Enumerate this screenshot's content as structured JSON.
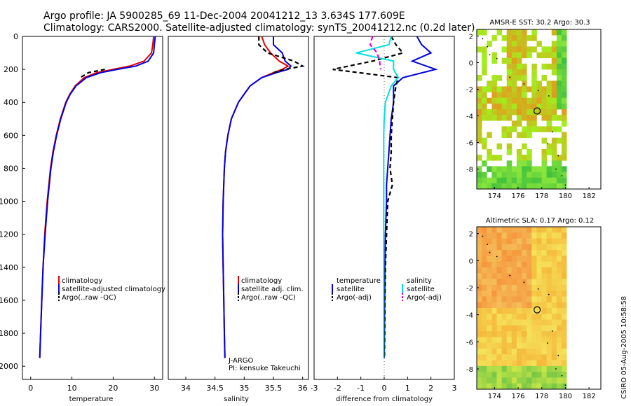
{
  "header": {
    "line1": "Argo profile: JA 5900285_69 11-Dec-2004 20041212_13 3.634S 177.609E",
    "line2": "Climatology: CARS2000. Satellite-adjusted climatology: synTS_20041212.nc (0.2d later)"
  },
  "colors": {
    "climatology": "#e00000",
    "satellite": "#0000e0",
    "argo": "#000000",
    "cyan": "#00e0e0",
    "magenta": "#e000e0"
  },
  "depth_ticks": [
    "0",
    "200",
    "400",
    "600",
    "800",
    "1000",
    "1200",
    "1400",
    "1600",
    "1800",
    "2000"
  ],
  "credit": "CSIRO 05-Aug-2005 10:58:58",
  "chart_data": [
    {
      "type": "line",
      "name": "temperature-profile",
      "xlabel": "temperature",
      "xlim": [
        -2,
        32
      ],
      "ylim": [
        2080,
        0
      ],
      "xticks": [
        "0",
        "10",
        "20",
        "30"
      ],
      "legend": [
        "climatology",
        "satellite-adjusted climatology",
        "Argo(..raw -QC)"
      ],
      "depth": [
        0,
        50,
        100,
        150,
        180,
        200,
        220,
        250,
        300,
        350,
        400,
        500,
        600,
        700,
        800,
        1000,
        1200,
        1400,
        1600,
        1800,
        1950
      ],
      "series": [
        {
          "name": "climatology",
          "color": "#e00000",
          "values": [
            29.8,
            29.6,
            29.3,
            27.5,
            24,
            20,
            16,
            13,
            10.8,
            9.5,
            8.5,
            7.2,
            6.2,
            5.4,
            4.8,
            4.0,
            3.4,
            3.0,
            2.7,
            2.4,
            2.2
          ]
        },
        {
          "name": "satellite-adjusted climatology",
          "color": "#0000e0",
          "values": [
            30.2,
            30.0,
            29.8,
            28.5,
            25.5,
            21,
            17,
            13.5,
            11,
            9.6,
            8.6,
            7.3,
            6.3,
            5.5,
            4.9,
            4.1,
            3.5,
            3.0,
            2.7,
            2.4,
            2.2
          ]
        },
        {
          "name": "Argo",
          "color": "#000000",
          "dashed": true,
          "values": [
            null,
            null,
            null,
            null,
            null,
            18,
            14,
            12,
            null,
            null,
            null,
            null,
            null,
            null,
            null,
            null,
            null,
            null,
            null,
            null,
            null
          ]
        }
      ]
    },
    {
      "type": "line",
      "name": "salinity-profile",
      "xlabel": "salinity",
      "xlim": [
        33.7,
        36.1
      ],
      "ylim": [
        2080,
        0
      ],
      "xticks": [
        "34",
        "34.5",
        "35",
        "35.5",
        "36"
      ],
      "legend": [
        "climatology",
        "satellite adj. clim.",
        "Argo(..raw -QC)"
      ],
      "annotation": [
        "J-ARGO",
        "PI: kensuke Takeuchi"
      ],
      "depth": [
        0,
        50,
        100,
        150,
        180,
        200,
        220,
        250,
        300,
        350,
        400,
        500,
        600,
        700,
        800,
        1000,
        1200,
        1400,
        1600,
        1800,
        1950
      ],
      "series": [
        {
          "name": "climatology",
          "color": "#e00000",
          "values": [
            35.3,
            35.35,
            35.45,
            35.6,
            35.75,
            35.65,
            35.5,
            35.3,
            35.1,
            35.0,
            34.9,
            34.78,
            34.72,
            34.68,
            34.66,
            34.64,
            34.63,
            34.64,
            34.65,
            34.66,
            34.67
          ]
        },
        {
          "name": "satellite adj. clim.",
          "color": "#0000e0",
          "values": [
            35.5,
            35.5,
            35.65,
            35.7,
            35.8,
            35.75,
            35.55,
            35.3,
            35.1,
            35.0,
            34.9,
            34.78,
            34.72,
            34.68,
            34.66,
            34.64,
            34.63,
            34.64,
            34.65,
            34.66,
            34.67
          ]
        },
        {
          "name": "Argo",
          "color": "#000000",
          "dashed": true,
          "values": [
            35.25,
            35.25,
            35.4,
            35.85,
            36.0,
            35.7,
            35.5,
            null,
            null,
            null,
            null,
            null,
            null,
            null,
            null,
            null,
            null,
            null,
            null,
            null,
            null
          ]
        }
      ]
    },
    {
      "type": "line",
      "name": "difference-from-climatology",
      "xlabel": "difference from climatology",
      "xlim": [
        -3,
        3
      ],
      "ylim": [
        2080,
        0
      ],
      "xticks": [
        "-3",
        "-2",
        "-1",
        "0",
        "1",
        "2",
        "3"
      ],
      "legend_left_title": "temperature",
      "legend_right_title": "salinity",
      "legend_left": [
        "satellite",
        "Argo(-adj)"
      ],
      "legend_right": [
        "satellite",
        "Argo(-adj)"
      ],
      "depth": [
        0,
        50,
        100,
        150,
        200,
        250,
        300,
        400,
        500,
        600,
        700,
        800,
        900,
        1000,
        1200,
        1400,
        1600,
        1800,
        1950
      ],
      "series": [
        {
          "name": "temperature satellite",
          "color": "#0000e0",
          "values": [
            1.4,
            1.6,
            2.0,
            1.2,
            2.2,
            0.8,
            0.4,
            0.4,
            0.3,
            0.25,
            0.2,
            0.15,
            0.1,
            0.1,
            0.05,
            0.03,
            0.02,
            0.01,
            0.0
          ]
        },
        {
          "name": "temperature Argo(-adj)",
          "color": "#000000",
          "dashed": true,
          "values": [
            0.3,
            0.5,
            0.8,
            -0.5,
            -2.2,
            0.6,
            0.5,
            0.4,
            0.35,
            0.3,
            0.3,
            0.25,
            0.35,
            0.15,
            0.1,
            0.05,
            0.03,
            0.02,
            0.01
          ]
        },
        {
          "name": "salinity satellite",
          "color": "#00e0e0",
          "values": [
            0.3,
            0.2,
            -1.2,
            0.4,
            0.4,
            0.6,
            0.3,
            0.05,
            0.0,
            -0.02,
            -0.02,
            -0.02,
            -0.02,
            -0.02,
            -0.02,
            -0.02,
            -0.02,
            -0.02,
            -0.02
          ]
        },
        {
          "name": "salinity Argo(-adj)",
          "color": "#e000e0",
          "dashed": true,
          "values": [
            -0.5,
            -0.6,
            -0.3,
            -0.2,
            -0.15,
            null,
            null,
            null,
            null,
            null,
            null,
            null,
            null,
            null,
            null,
            null,
            null,
            null,
            null
          ]
        }
      ]
    },
    {
      "type": "heatmap",
      "name": "amsr-e-sst-map",
      "title": "AMSR-E SST: 30.2 Argo: 30.3",
      "xlim": [
        172.5,
        183
      ],
      "ylim": [
        -9.5,
        2.5
      ],
      "xticks": [
        "174",
        "176",
        "178",
        "180",
        "182"
      ],
      "yticks": [
        "2",
        "0",
        "-2",
        "-4",
        "-6",
        "-8"
      ],
      "float_position": [
        177.609,
        -3.634
      ]
    },
    {
      "type": "heatmap",
      "name": "altimetric-sla-map",
      "title": "Altimetric SLA: 0.17 Argo: 0.12",
      "xlim": [
        172.5,
        183
      ],
      "ylim": [
        -9.5,
        2.5
      ],
      "xticks": [
        "174",
        "176",
        "178",
        "180",
        "182"
      ],
      "yticks": [
        "2",
        "0",
        "-2",
        "-4",
        "-6",
        "-8"
      ],
      "float_position": [
        177.609,
        -3.634
      ]
    }
  ]
}
